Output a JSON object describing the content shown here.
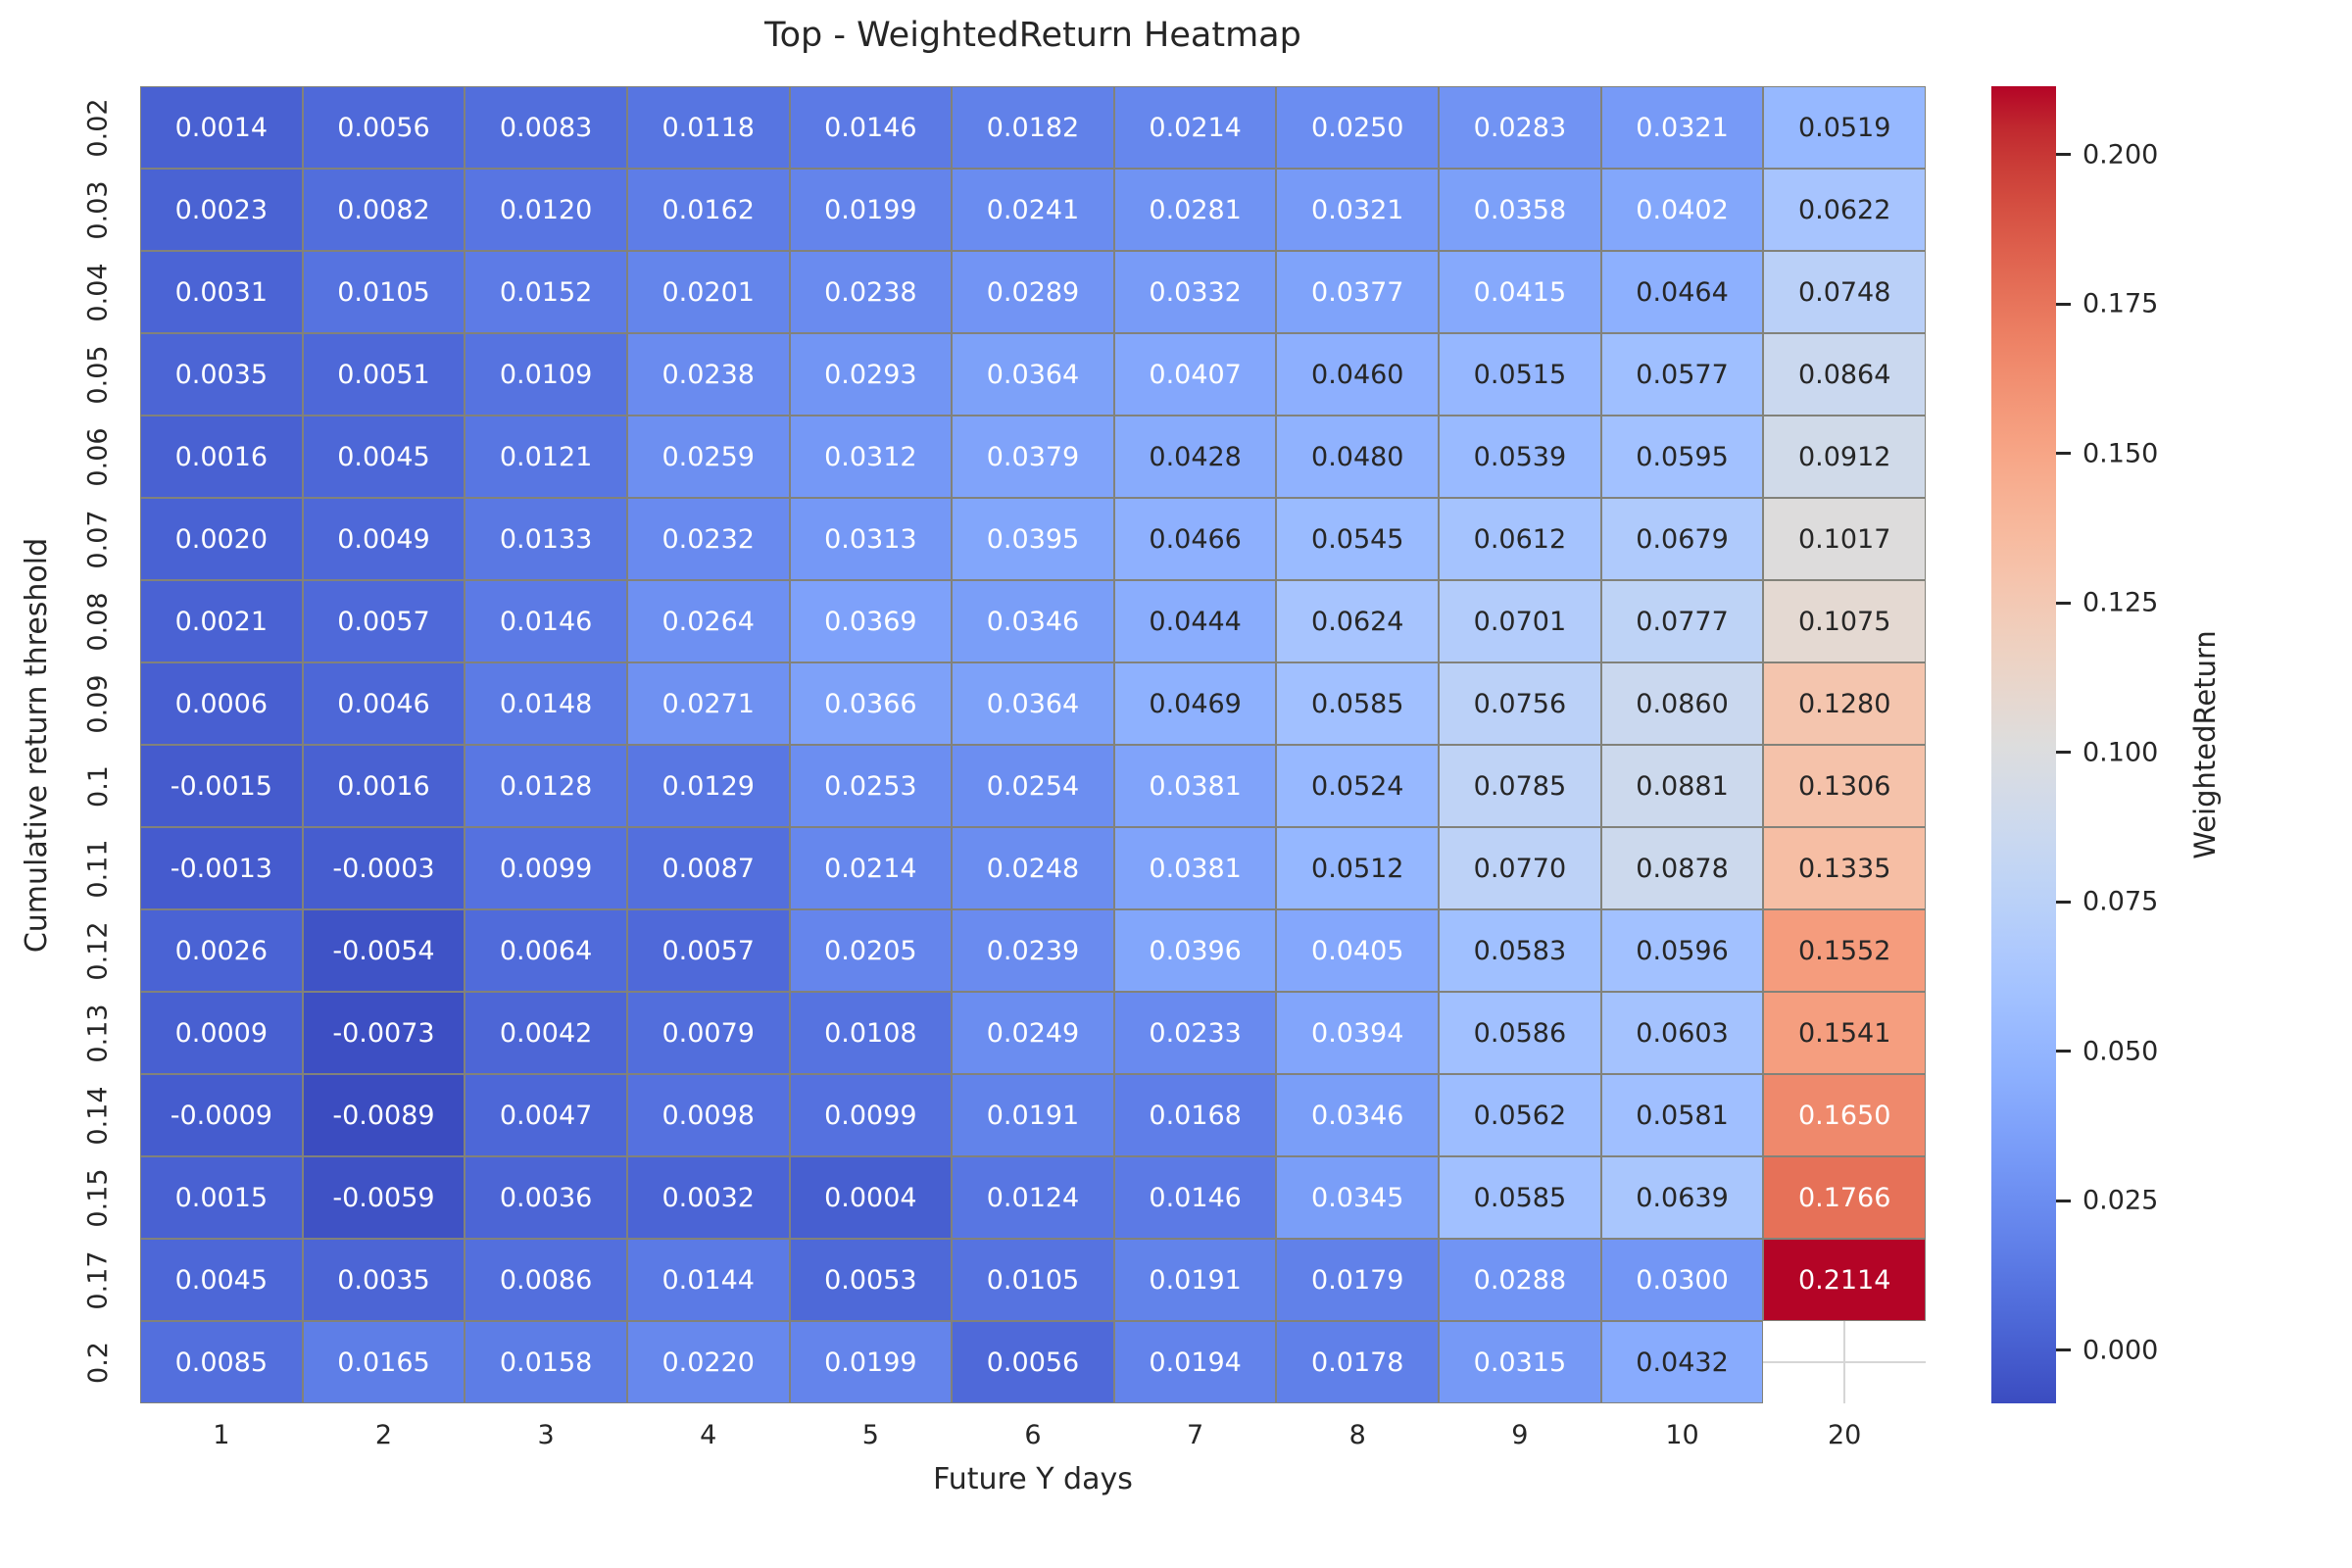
{
  "title": "Top - WeightedReturn Heatmap",
  "x_axis": {
    "label": "Future Y days"
  },
  "y_axis": {
    "label": "Cumulative return threshold"
  },
  "colorbar": {
    "label": "WeightedReturn",
    "tick_values": [
      0.0,
      0.025,
      0.05,
      0.075,
      0.1,
      0.125,
      0.15,
      0.175,
      0.2
    ],
    "tick_labels": [
      "0.000",
      "0.025",
      "0.050",
      "0.075",
      "0.100",
      "0.125",
      "0.150",
      "0.175",
      "0.200"
    ]
  },
  "colors": {
    "background": "#ffffff",
    "grid_line": "#82827a",
    "dark_text": "#262626",
    "light_text": "#ffffff",
    "missing_cross": "#d6d6d6"
  },
  "chart_data": {
    "type": "heatmap",
    "title": "Top - WeightedReturn Heatmap",
    "xlabel": "Future Y days",
    "ylabel": "Cumulative return threshold",
    "colorbar_label": "WeightedReturn",
    "colormap": "coolwarm",
    "vmin": -0.0089,
    "vmax": 0.2114,
    "annotation_decimals": 4,
    "legend_position": "right-colorbar",
    "grid": "cell-borders",
    "x_categories": [
      "1",
      "2",
      "3",
      "4",
      "5",
      "6",
      "7",
      "8",
      "9",
      "10",
      "20"
    ],
    "y_categories": [
      "0.02",
      "0.03",
      "0.04",
      "0.05",
      "0.06",
      "0.07",
      "0.08",
      "0.09",
      "0.1",
      "0.11",
      "0.12",
      "0.13",
      "0.14",
      "0.15",
      "0.17",
      "0.2"
    ],
    "values": [
      [
        0.0014,
        0.0056,
        0.0083,
        0.0118,
        0.0146,
        0.0182,
        0.0214,
        0.025,
        0.0283,
        0.0321,
        0.0519
      ],
      [
        0.0023,
        0.0082,
        0.012,
        0.0162,
        0.0199,
        0.0241,
        0.0281,
        0.0321,
        0.0358,
        0.0402,
        0.0622
      ],
      [
        0.0031,
        0.0105,
        0.0152,
        0.0201,
        0.0238,
        0.0289,
        0.0332,
        0.0377,
        0.0415,
        0.0464,
        0.0748
      ],
      [
        0.0035,
        0.0051,
        0.0109,
        0.0238,
        0.0293,
        0.0364,
        0.0407,
        0.046,
        0.0515,
        0.0577,
        0.0864
      ],
      [
        0.0016,
        0.0045,
        0.0121,
        0.0259,
        0.0312,
        0.0379,
        0.0428,
        0.048,
        0.0539,
        0.0595,
        0.0912
      ],
      [
        0.002,
        0.0049,
        0.0133,
        0.0232,
        0.0313,
        0.0395,
        0.0466,
        0.0545,
        0.0612,
        0.0679,
        0.1017
      ],
      [
        0.0021,
        0.0057,
        0.0146,
        0.0264,
        0.0369,
        0.0346,
        0.0444,
        0.0624,
        0.0701,
        0.0777,
        0.1075
      ],
      [
        0.0006,
        0.0046,
        0.0148,
        0.0271,
        0.0366,
        0.0364,
        0.0469,
        0.0585,
        0.0756,
        0.086,
        0.128
      ],
      [
        -0.0015,
        0.0016,
        0.0128,
        0.0129,
        0.0253,
        0.0254,
        0.0381,
        0.0524,
        0.0785,
        0.0881,
        0.1306
      ],
      [
        -0.0013,
        -0.0003,
        0.0099,
        0.0087,
        0.0214,
        0.0248,
        0.0381,
        0.0512,
        0.077,
        0.0878,
        0.1335
      ],
      [
        0.0026,
        -0.0054,
        0.0064,
        0.0057,
        0.0205,
        0.0239,
        0.0396,
        0.0405,
        0.0583,
        0.0596,
        0.1552
      ],
      [
        0.0009,
        -0.0073,
        0.0042,
        0.0079,
        0.0108,
        0.0249,
        0.0233,
        0.0394,
        0.0586,
        0.0603,
        0.1541
      ],
      [
        -0.0009,
        -0.0089,
        0.0047,
        0.0098,
        0.0099,
        0.0191,
        0.0168,
        0.0346,
        0.0562,
        0.0581,
        0.165
      ],
      [
        0.0015,
        -0.0059,
        0.0036,
        0.0032,
        0.0004,
        0.0124,
        0.0146,
        0.0345,
        0.0585,
        0.0639,
        0.1766
      ],
      [
        0.0045,
        0.0035,
        0.0086,
        0.0144,
        0.0053,
        0.0105,
        0.0191,
        0.0179,
        0.0288,
        0.03,
        0.2114
      ],
      [
        0.0085,
        0.0165,
        0.0158,
        0.022,
        0.0199,
        0.0056,
        0.0194,
        0.0178,
        0.0315,
        0.0432,
        null
      ]
    ]
  }
}
